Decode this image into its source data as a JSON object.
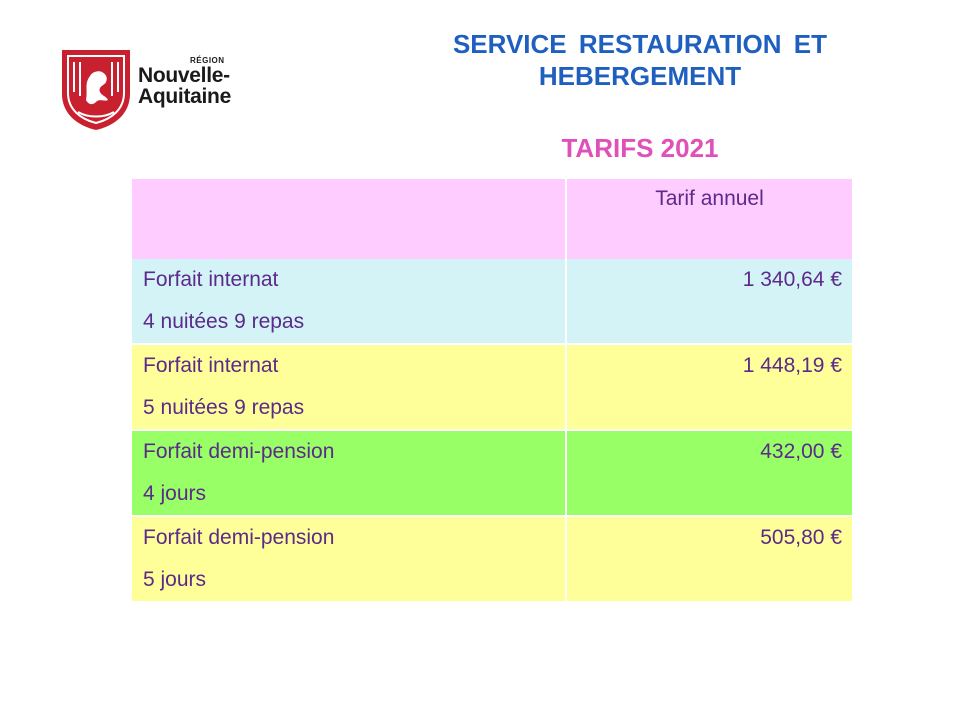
{
  "logo": {
    "region": "RÉGION",
    "line1": "Nouvelle-",
    "line2": "Aquitaine",
    "shield_color": "#c8202f"
  },
  "header": {
    "title_line1": "SERVICE RESTAURATION ET",
    "title_line2": "HEBERGEMENT",
    "subtitle": "TARIFS 2021"
  },
  "table": {
    "header": {
      "label": "",
      "price": "Tarif annuel"
    },
    "rows": [
      {
        "line1": "Forfait internat",
        "line2": "4 nuitées 9 repas",
        "price": "1 340,64 €",
        "color": "#d3f3f7"
      },
      {
        "line1": "Forfait internat",
        "line2": "5 nuitées 9 repas",
        "price": "1 448,19 €",
        "color": "#ffff99"
      },
      {
        "line1": "Forfait demi-pension",
        "line2": "4 jours",
        "price": "432,00 €",
        "color": "#99ff66"
      },
      {
        "line1": "Forfait demi-pension",
        "line2": "5 jours",
        "price": "505,80 €",
        "color": "#ffff99"
      }
    ]
  }
}
